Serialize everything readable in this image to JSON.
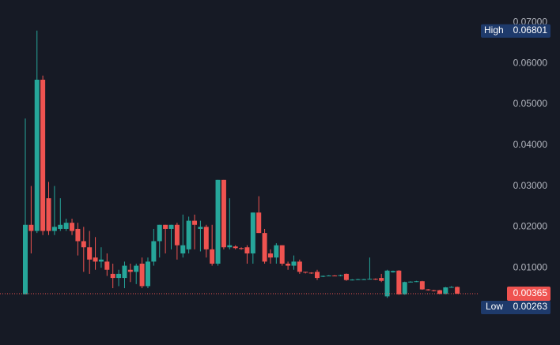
{
  "chart_data": {
    "type": "candlestick",
    "up_color": "#26a69a",
    "down_color": "#ef5350",
    "ylim": [
      -0.0089,
      0.0755
    ],
    "yticks": [
      {
        "value": 0.01,
        "label": "0.01000"
      },
      {
        "value": 0.02,
        "label": "0.02000"
      },
      {
        "value": 0.03,
        "label": "0.03000"
      },
      {
        "value": 0.04,
        "label": "0.04000"
      },
      {
        "value": 0.05,
        "label": "0.05000"
      },
      {
        "value": 0.06,
        "label": "0.06000"
      },
      {
        "value": 0.07,
        "label": "0.07000"
      }
    ],
    "grid": false,
    "high_marker": {
      "label": "High",
      "value": 0.06801
    },
    "low_marker": {
      "label": "Low",
      "value": 0.00263
    },
    "last_price": 0.00365,
    "open": [
      0.0035,
      0.0205,
      0.019,
      0.056,
      0.027,
      0.019,
      0.0195,
      0.0195,
      0.021,
      0.0195,
      0.0165,
      0.015,
      0.0125,
      0.0115,
      0.0115,
      0.0085,
      0.0075,
      0.0075,
      0.0095,
      0.009,
      0.011,
      0.0055,
      0.0115,
      0.0165,
      0.0205,
      0.0195,
      0.0205,
      0.0135,
      0.0145,
      0.0215,
      0.0195,
      0.02,
      0.0145,
      0.011,
      0.0315,
      0.015,
      0.0152,
      0.0148,
      0.015,
      0.0135,
      0.0235,
      0.0185,
      0.0135,
      0.0125,
      0.0155,
      0.011,
      0.0105,
      0.0115,
      0.009,
      0.0088,
      0.009,
      0.0078,
      0.008,
      0.0081,
      0.008,
      0.0085,
      0.007,
      0.0071,
      0.0071,
      0.0072,
      0.0073,
      0.0075,
      0.003,
      0.0089,
      0.0093,
      0.0035,
      0.0065,
      0.0066,
      0.0067,
      0.0047,
      0.0045,
      0.0045,
      0.0036,
      0.0052,
      0.0053
    ],
    "high": [
      0.0465,
      0.03,
      0.06801,
      0.057,
      0.031,
      0.03,
      0.027,
      0.022,
      0.022,
      0.021,
      0.02,
      0.019,
      0.0175,
      0.015,
      0.0135,
      0.011,
      0.0095,
      0.0115,
      0.011,
      0.011,
      0.0125,
      0.0125,
      0.0195,
      0.0205,
      0.0205,
      0.0205,
      0.021,
      0.023,
      0.0225,
      0.023,
      0.0215,
      0.0205,
      0.0205,
      0.0315,
      0.0315,
      0.027,
      0.0155,
      0.015,
      0.0155,
      0.0235,
      0.0275,
      0.0195,
      0.0145,
      0.016,
      0.0155,
      0.0115,
      0.013,
      0.012,
      0.009,
      0.0089,
      0.0095,
      0.0081,
      0.0082,
      0.0082,
      0.0083,
      0.0086,
      0.0072,
      0.0073,
      0.0073,
      0.0125,
      0.0074,
      0.0085,
      0.0095,
      0.0093,
      0.0094,
      0.0066,
      0.0067,
      0.0068,
      0.0068,
      0.0048,
      0.0046,
      0.0046,
      0.0053,
      0.0055,
      0.0054
    ],
    "low": [
      0.0035,
      0.0135,
      0.0185,
      0.018,
      0.018,
      0.018,
      0.019,
      0.019,
      0.018,
      0.013,
      0.009,
      0.0085,
      0.0095,
      0.01,
      0.008,
      0.005,
      0.0055,
      0.005,
      0.0065,
      0.006,
      0.005,
      0.005,
      0.0105,
      0.0125,
      0.0135,
      0.0145,
      0.012,
      0.0125,
      0.0135,
      0.0145,
      0.014,
      0.0125,
      0.0105,
      0.0105,
      0.0145,
      0.0145,
      0.0145,
      0.0144,
      0.011,
      0.011,
      0.0185,
      0.011,
      0.011,
      0.011,
      0.0105,
      0.0095,
      0.0095,
      0.0085,
      0.0086,
      0.0085,
      0.007,
      0.0077,
      0.0079,
      0.0079,
      0.0079,
      0.0068,
      0.0069,
      0.007,
      0.007,
      0.0071,
      0.007,
      0.0065,
      0.00263,
      0.0088,
      0.0034,
      0.0034,
      0.0064,
      0.0065,
      0.0046,
      0.0044,
      0.0042,
      0.0035,
      0.0035,
      0.0051,
      0.0036
    ],
    "close": [
      0.0205,
      0.019,
      0.056,
      0.019,
      0.019,
      0.02,
      0.0205,
      0.021,
      0.019,
      0.0165,
      0.015,
      0.012,
      0.0115,
      0.012,
      0.0095,
      0.0075,
      0.0085,
      0.0105,
      0.009,
      0.0105,
      0.0055,
      0.0115,
      0.0165,
      0.0205,
      0.0195,
      0.0205,
      0.0155,
      0.0155,
      0.0215,
      0.0205,
      0.02,
      0.0145,
      0.011,
      0.0315,
      0.015,
      0.0155,
      0.0148,
      0.0146,
      0.0135,
      0.0235,
      0.0185,
      0.0115,
      0.0125,
      0.0155,
      0.011,
      0.0105,
      0.0115,
      0.009,
      0.0088,
      0.0086,
      0.0075,
      0.008,
      0.0081,
      0.008,
      0.0082,
      0.007,
      0.0071,
      0.0072,
      0.0072,
      0.0073,
      0.0071,
      0.0068,
      0.0093,
      0.0092,
      0.0035,
      0.0065,
      0.0066,
      0.0067,
      0.0047,
      0.0045,
      0.0043,
      0.0036,
      0.0052,
      0.0053,
      0.00365
    ]
  }
}
